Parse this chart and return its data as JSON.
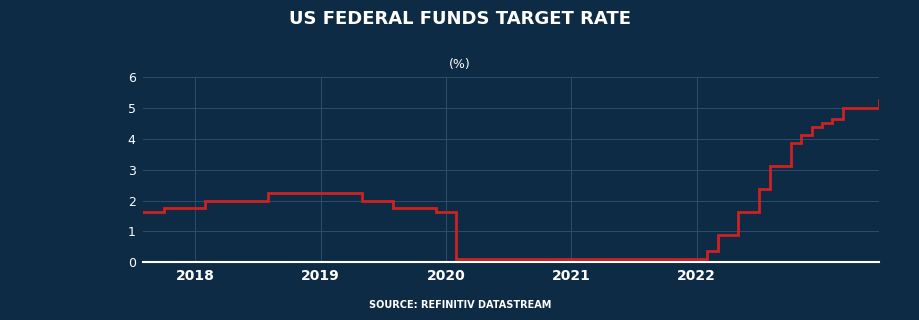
{
  "title": "US FEDERAL FUNDS TARGET RATE",
  "subtitle": "(%)",
  "source": "SOURCE: REFINITIV DATASTREAM",
  "background_color": "#0d2b45",
  "plot_bg_color": "#0d2b45",
  "line_color": "#cc2222",
  "grid_color": "#2a4d6e",
  "text_color": "#ffffff",
  "axis_color": "#ffffff",
  "ylim": [
    0,
    6
  ],
  "yticks": [
    0,
    1,
    2,
    3,
    4,
    5,
    6
  ],
  "xlim": [
    2017.58,
    2023.45
  ],
  "xticks": [
    2018,
    2019,
    2020,
    2021,
    2022
  ],
  "line_width": 2.0,
  "x": [
    2017.58,
    2017.75,
    2017.92,
    2018.08,
    2018.33,
    2018.58,
    2018.92,
    2019.08,
    2019.33,
    2019.58,
    2019.83,
    2019.92,
    2020.0,
    2020.08,
    2020.25,
    2021.0,
    2021.83,
    2022.0,
    2022.08,
    2022.17,
    2022.33,
    2022.5,
    2022.58,
    2022.75,
    2022.83,
    2022.92,
    2023.0,
    2023.08,
    2023.17,
    2023.45
  ],
  "y": [
    1.625,
    1.75,
    1.75,
    2.0,
    2.0,
    2.25,
    2.25,
    2.25,
    2.0,
    1.75,
    1.75,
    1.625,
    1.625,
    0.125,
    0.125,
    0.125,
    0.125,
    0.125,
    0.375,
    0.875,
    1.625,
    2.375,
    3.125,
    3.875,
    4.125,
    4.375,
    4.5,
    4.625,
    5.0,
    5.25
  ]
}
